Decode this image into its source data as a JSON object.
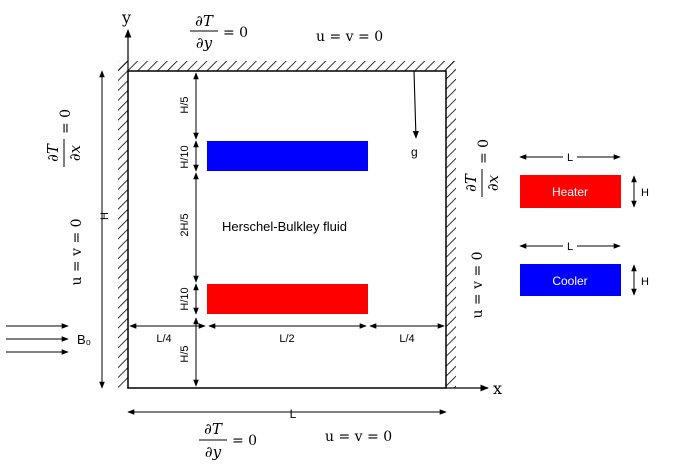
{
  "axes": {
    "x_label": "x",
    "y_label": "y"
  },
  "cavity": {
    "height_label": "H",
    "width_label": "L",
    "fluid_label": "Herschel-Bulkley fluid",
    "gravity_label": "g",
    "magnetic_field_label": "B₀"
  },
  "boundary_conditions": {
    "top_adiabatic_num": "∂T",
    "top_adiabatic_den": "∂y",
    "top_adiabatic_rhs": "= 0",
    "top_noslip": "u = v = 0",
    "bottom_adiabatic_num": "∂T",
    "bottom_adiabatic_den": "∂y",
    "bottom_adiabatic_rhs": "= 0",
    "bottom_noslip": "u = v = 0",
    "left_adiabatic_num": "∂T",
    "left_adiabatic_den": "∂x",
    "left_adiabatic_rhs": "= 0",
    "left_noslip": "u = v = 0",
    "right_adiabatic_num": "∂T",
    "right_adiabatic_den": "∂x",
    "right_adiabatic_rhs": "= 0",
    "right_noslip": "u = v = 0"
  },
  "vertical_dimensions": {
    "top_gap": "H/5",
    "upper_block_height": "H/10",
    "middle_gap": "2H/5",
    "lower_block_height": "H/10",
    "bottom_gap": "H/5"
  },
  "horizontal_dimensions": {
    "left_gap": "L/4",
    "block_width": "L/2",
    "right_gap": "L/4"
  },
  "legend": {
    "heater_label": "Heater",
    "heater_width_label": "L",
    "heater_height_label": "H",
    "cooler_label": "Cooler",
    "cooler_width_label": "L",
    "cooler_height_label": "H"
  },
  "colors": {
    "heater": "#ff0000",
    "cooler": "#0000ff",
    "line": "#000000"
  }
}
